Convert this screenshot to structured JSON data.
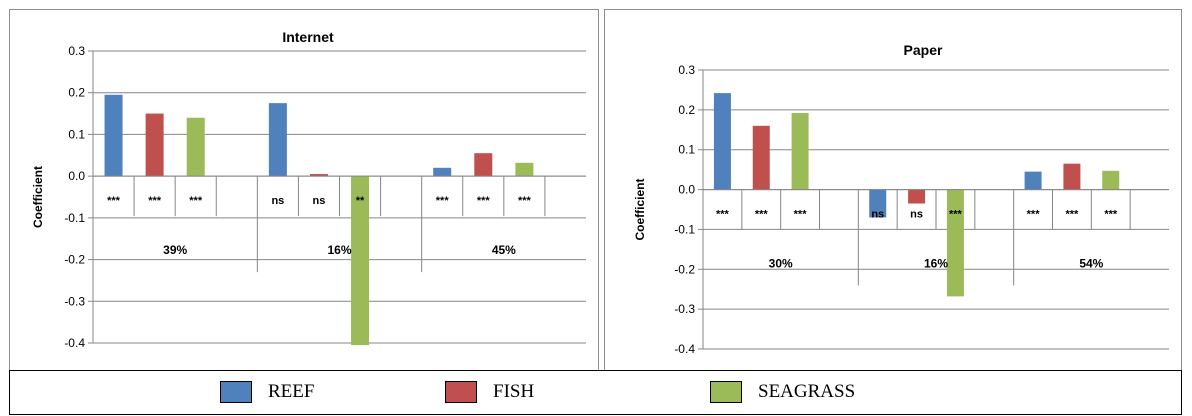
{
  "colors": {
    "REEF": "#4f81bd",
    "FISH": "#c0504d",
    "SEAGRASS": "#9bbb59"
  },
  "legend": {
    "items": [
      "REEF",
      "FISH",
      "SEAGRASS"
    ]
  },
  "chart_data": [
    {
      "type": "bar",
      "title": "Internet",
      "xlabel": "",
      "ylabel": "Coefficient",
      "ylim": [
        -0.4,
        0.3
      ],
      "yticks": [
        "0.3",
        "0.2",
        "0.1",
        "0.0",
        "-0.1",
        "-0.2",
        "-0.3",
        "-0.4"
      ],
      "groups": [
        "39%",
        "16%",
        "45%"
      ],
      "series": [
        {
          "name": "REEF",
          "values": [
            0.195,
            0.175,
            0.02
          ]
        },
        {
          "name": "FISH",
          "values": [
            0.15,
            0.005,
            0.055
          ]
        },
        {
          "name": "SEAGRASS",
          "values": [
            0.14,
            -0.405,
            0.032
          ]
        }
      ],
      "significance": [
        [
          "***",
          "***",
          "***"
        ],
        [
          "ns",
          "ns",
          "**"
        ],
        [
          "***",
          "***",
          "***"
        ]
      ],
      "grid": true
    },
    {
      "type": "bar",
      "title": "Paper",
      "xlabel": "",
      "ylabel": "Coefficient",
      "ylim": [
        -0.4,
        0.3
      ],
      "yticks": [
        "0.3",
        "0.2",
        "0.1",
        "0.0",
        "-0.1",
        "-0.2",
        "-0.3",
        "-0.4"
      ],
      "groups": [
        "30%",
        "16%",
        "54%"
      ],
      "series": [
        {
          "name": "REEF",
          "values": [
            0.242,
            -0.07,
            0.045
          ]
        },
        {
          "name": "FISH",
          "values": [
            0.16,
            -0.035,
            0.065
          ]
        },
        {
          "name": "SEAGRASS",
          "values": [
            0.192,
            -0.268,
            0.047
          ]
        }
      ],
      "significance": [
        [
          "***",
          "***",
          "***"
        ],
        [
          "ns",
          "ns",
          "***"
        ],
        [
          "***",
          "***",
          "***"
        ]
      ],
      "grid": true
    }
  ]
}
